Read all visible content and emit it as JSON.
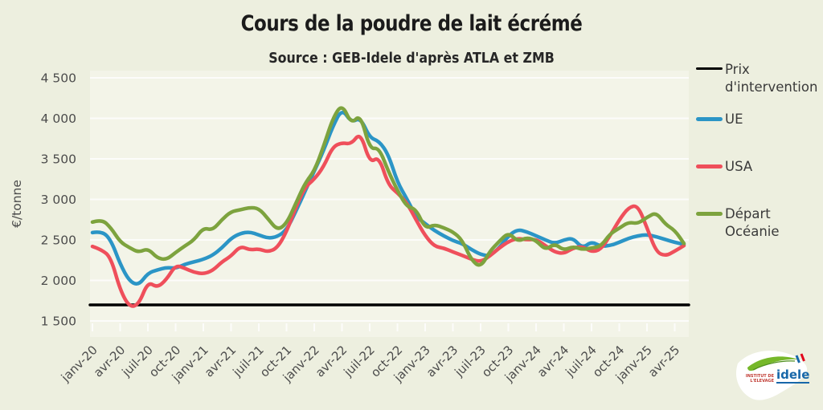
{
  "colors": {
    "page_bg": "#edefdf",
    "plot_bg": "#f3f4e8",
    "gridline": "#ffffff",
    "axis_text": "#4c4c4c",
    "title_text": "#1b1b1b",
    "prix_intervention": "#000000",
    "ue": "#2b95c6",
    "usa": "#ef4f5b",
    "oceanie": "#7da33e"
  },
  "legend": {
    "items": [
      {
        "label": "Prix d'intervention",
        "color": "#000000",
        "thickness": 3
      },
      {
        "label": "UE",
        "color": "#2b95c6",
        "thickness": 5
      },
      {
        "label": "USA",
        "color": "#ef4f5b",
        "thickness": 5
      },
      {
        "label": "Départ Océanie",
        "color": "#7da33e",
        "thickness": 5
      }
    ]
  },
  "logo": {
    "institute": "INSTITUT DE L'ELEVAGE",
    "name": "idele"
  },
  "chart_data": {
    "type": "line",
    "title": "Cours de la poudre de lait écrémé",
    "subtitle": "Source : GEB-Idele d'après ATLA et ZMB",
    "ylabel": "€/tonne",
    "ylim": [
      1500,
      4500
    ],
    "ytick_step": 500,
    "ytick_labels": [
      "1 500",
      "2 000",
      "2 500",
      "3 000",
      "3 500",
      "4 000",
      "4 500"
    ],
    "grid": true,
    "legend_position": "right",
    "x_unit": "month",
    "x_months_per_tick": 3,
    "xtick_labels": [
      "janv-20",
      "avr-20",
      "juil-20",
      "oct-20",
      "janv-21",
      "avr-21",
      "juil-21",
      "oct-21",
      "janv-22",
      "avr-22",
      "juil-22",
      "oct-22",
      "janv-23",
      "avr-23",
      "juil-23",
      "oct-23",
      "janv-24",
      "avr-24",
      "juil-24",
      "oct-24",
      "janv-25",
      "avr-25"
    ],
    "series": [
      {
        "id": "prix-intervention",
        "name": "Prix d'intervention",
        "color": "#000000",
        "width": 3.5,
        "constant": 1698
      },
      {
        "id": "ue",
        "name": "UE",
        "color": "#2b95c6",
        "width": 4.5,
        "values": [
          2590,
          2610,
          2500,
          2200,
          1990,
          1940,
          2090,
          2130,
          2160,
          2150,
          2200,
          2230,
          2260,
          2310,
          2400,
          2520,
          2580,
          2600,
          2560,
          2520,
          2540,
          2620,
          2850,
          3100,
          3350,
          3600,
          3900,
          4120,
          3950,
          4010,
          3760,
          3720,
          3560,
          3210,
          3010,
          2790,
          2700,
          2615,
          2550,
          2490,
          2455,
          2380,
          2320,
          2300,
          2400,
          2550,
          2630,
          2600,
          2550,
          2500,
          2455,
          2500,
          2525,
          2395,
          2480,
          2420,
          2430,
          2470,
          2520,
          2550,
          2565,
          2540,
          2505,
          2470,
          2445
        ]
      },
      {
        "id": "usa",
        "name": "USA",
        "color": "#ef4f5b",
        "width": 4.5,
        "values": [
          2420,
          2380,
          2280,
          1880,
          1670,
          1700,
          1985,
          1910,
          2010,
          2190,
          2150,
          2100,
          2080,
          2120,
          2230,
          2300,
          2425,
          2375,
          2390,
          2350,
          2400,
          2600,
          2900,
          3150,
          3250,
          3400,
          3650,
          3700,
          3680,
          3830,
          3450,
          3530,
          3180,
          3080,
          2960,
          2750,
          2550,
          2420,
          2400,
          2350,
          2310,
          2260,
          2230,
          2300,
          2400,
          2480,
          2520,
          2500,
          2510,
          2430,
          2350,
          2330,
          2400,
          2420,
          2350,
          2380,
          2550,
          2750,
          2900,
          2930,
          2650,
          2350,
          2300,
          2360,
          2430
        ]
      },
      {
        "id": "depart-oceanie",
        "name": "Départ Océanie",
        "color": "#7da33e",
        "width": 4.5,
        "values": [
          2720,
          2755,
          2650,
          2475,
          2405,
          2345,
          2395,
          2275,
          2255,
          2345,
          2425,
          2500,
          2650,
          2620,
          2750,
          2850,
          2870,
          2900,
          2890,
          2760,
          2620,
          2700,
          2950,
          3200,
          3350,
          3650,
          4000,
          4180,
          3930,
          4050,
          3620,
          3640,
          3350,
          3110,
          2910,
          2880,
          2640,
          2690,
          2650,
          2600,
          2500,
          2250,
          2160,
          2360,
          2480,
          2590,
          2480,
          2530,
          2495,
          2375,
          2455,
          2370,
          2420,
          2380,
          2400,
          2420,
          2575,
          2645,
          2720,
          2700,
          2780,
          2840,
          2690,
          2620,
          2455
        ]
      }
    ]
  }
}
